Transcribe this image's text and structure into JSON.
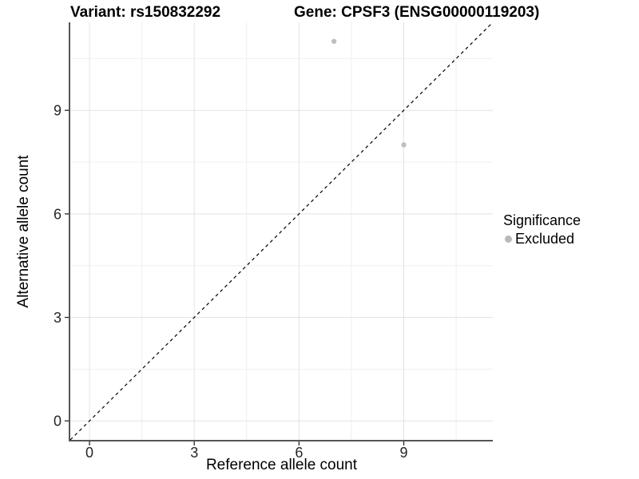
{
  "header": {
    "title_left": "Variant: rs150832292",
    "title_right": "Gene: CPSF3 (ENSG00000119203)"
  },
  "chart_data": {
    "type": "scatter",
    "title_left": "Variant: rs150832292",
    "title_right": "Gene: CPSF3 (ENSG00000119203)",
    "xlabel": "Reference allele count",
    "ylabel": "Alternative allele count",
    "xlim": [
      -0.55,
      11.55
    ],
    "ylim": [
      -0.55,
      11.55
    ],
    "x_major_breaks": [
      0,
      3,
      6,
      9
    ],
    "y_major_breaks": [
      0,
      3,
      6,
      9
    ],
    "x_minor_breaks": [
      1.5,
      4.5,
      7.5,
      10.5
    ],
    "y_minor_breaks": [
      1.5,
      4.5,
      7.5,
      10.5
    ],
    "grid": true,
    "reference_line": {
      "type": "identity",
      "style": "dashed",
      "color": "#000000",
      "x1": -0.55,
      "y1": -0.55,
      "x2": 11.55,
      "y2": 11.55
    },
    "series": [
      {
        "name": "Excluded",
        "color": "#bfbfbf",
        "marker": "circle",
        "points": [
          {
            "x": 7,
            "y": 11
          },
          {
            "x": 9,
            "y": 8
          }
        ]
      }
    ],
    "legend": {
      "title": "Significance",
      "position": "right",
      "entries": [
        {
          "label": "Excluded",
          "color": "#b9b9b9"
        }
      ]
    }
  },
  "colors": {
    "background": "#ffffff",
    "major_grid": "#e3e3e3",
    "minor_grid": "#efefef",
    "axis_line": "#555555",
    "tick_mark": "#333333",
    "tick_label": "#262626",
    "point": "#bfbfbf",
    "dashed_line": "#000000"
  }
}
